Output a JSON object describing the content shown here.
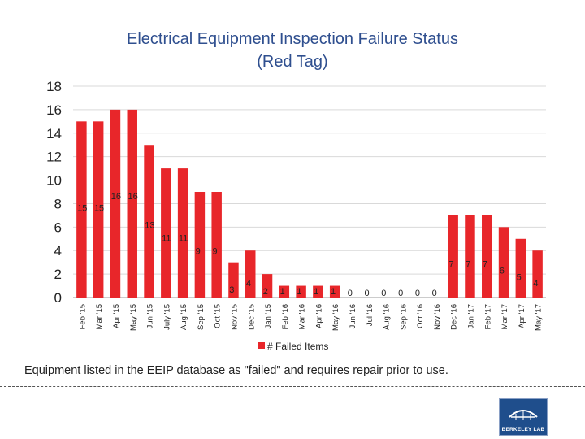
{
  "chart_data": {
    "type": "bar",
    "title_line1": "Electrical Equipment Inspection Failure Status",
    "title_line2": "(Red Tag)",
    "categories": [
      "Feb '15",
      "Mar '15",
      "Apr '15",
      "May '15",
      "Jun '15",
      "July '15",
      "Aug '15",
      "Sep '15",
      "Oct '15",
      "Nov '15",
      "Dec '15",
      "Jan '15",
      "Feb '16",
      "Mar '16",
      "Apr '16",
      "May '16",
      "Jun '16",
      "Jul '16",
      "Aug '16",
      "Sep '16",
      "Oct '16",
      "Nov '16",
      "Dec '16",
      "Jan '17",
      "Feb '17",
      "Mar '17",
      "Apr '17",
      "May '17"
    ],
    "series": [
      {
        "name": "# Failed Items",
        "color": "#e8262a",
        "values": [
          15,
          15,
          16,
          16,
          13,
          11,
          11,
          9,
          9,
          3,
          4,
          2,
          1,
          1,
          1,
          1,
          0,
          0,
          0,
          0,
          0,
          0,
          7,
          7,
          7,
          6,
          5,
          4
        ]
      }
    ],
    "ylim": [
      0,
      18
    ],
    "yticks": [
      "0",
      "2",
      "4",
      "6",
      "8",
      "10",
      "12",
      "14",
      "16",
      "18"
    ],
    "grid": true,
    "legend_position": "bottom"
  },
  "caption": "Equipment listed in the EEIP database as \"failed\" and requires repair prior to use.",
  "logo": {
    "text": "BERKELEY LAB"
  }
}
